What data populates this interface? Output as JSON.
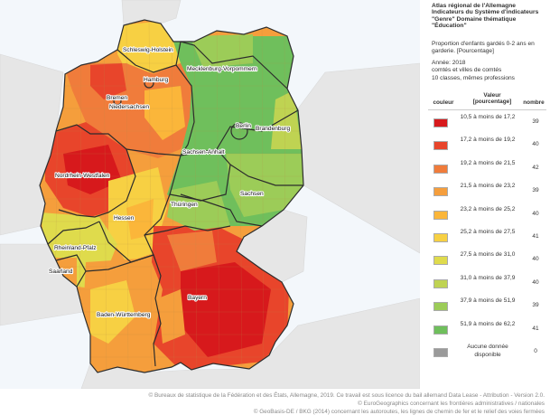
{
  "legend": {
    "title": "Atlas régional de l'Allemagne\nIndicateurs du Système d'indicateurs\n\"Genre\" Domaine thématique\n\"Éducation\"",
    "description": "Proportion d'enfants gardés 0-2 ans en garderie. [Pourcentage]",
    "year": "Année: 2018",
    "level": "comtés et villes de comtés",
    "classes": "10 classes, mêmes professions",
    "col_color": "couleur",
    "col_value": "Valeur [pourcentage]",
    "col_count": "nombre",
    "rows": [
      {
        "range": "10,5 à moins de 17,2",
        "count": "39",
        "color": "#d7191c"
      },
      {
        "range": "17,2 à moins de 19,2",
        "count": "40",
        "color": "#e8452b"
      },
      {
        "range": "19,2 à moins de 21,5",
        "count": "42",
        "color": "#f07c3b"
      },
      {
        "range": "21,5 à moins de 23,2",
        "count": "39",
        "color": "#f59e3c"
      },
      {
        "range": "23,2 à moins de 25,2",
        "count": "40",
        "color": "#fbb63a"
      },
      {
        "range": "25,2 à moins de 27,5",
        "count": "41",
        "color": "#f7d043"
      },
      {
        "range": "27,5 à moins de 31,0",
        "count": "40",
        "color": "#dfdb4c"
      },
      {
        "range": "31,0 à moins de 37,9",
        "count": "40",
        "color": "#bfd352"
      },
      {
        "range": "37,9 à moins de 51,9",
        "count": "39",
        "color": "#9ccc58"
      },
      {
        "range": "51,9 à moins de 62,2",
        "count": "41",
        "color": "#6fbf5c"
      },
      {
        "range": "Aucune donnée disponible",
        "count": "0",
        "color": "#9a9a9a"
      }
    ]
  },
  "regions": {
    "schleswig": "Schleswig-Holstein",
    "hamburg": "Hamburg",
    "mecklenburg": "Mecklenburg-Vorpommern",
    "bremen": "Bremen",
    "niedersachsen": "Niedersachsen",
    "berlin": "Berlin",
    "brandenburg": "Brandenburg",
    "sachsen_anhalt": "Sachsen-Anhalt",
    "nrw": "Nordrhein-Westfalen",
    "sachsen": "Sachsen",
    "thueringen": "Thüringen",
    "hessen": "Hessen",
    "rheinland": "Rheinland-Pfalz",
    "saarland": "Saarland",
    "bayern": "Bayern",
    "bw": "Baden-Württemberg"
  },
  "footer": {
    "line1": "© Bureaux de statistique de la Fédération et des États, Allemagne, 2019. Ce travail est sous licence du bail allemand Data Lease - Attribution - Version 2.0.",
    "line2": "© EuroGeographics concernant les frontières administratives / nationales",
    "line3": "© GeoBasis-DE / BKG (2014) concernant les autoroutes, les lignes de chemin de fer et le relief des voies fermées"
  }
}
